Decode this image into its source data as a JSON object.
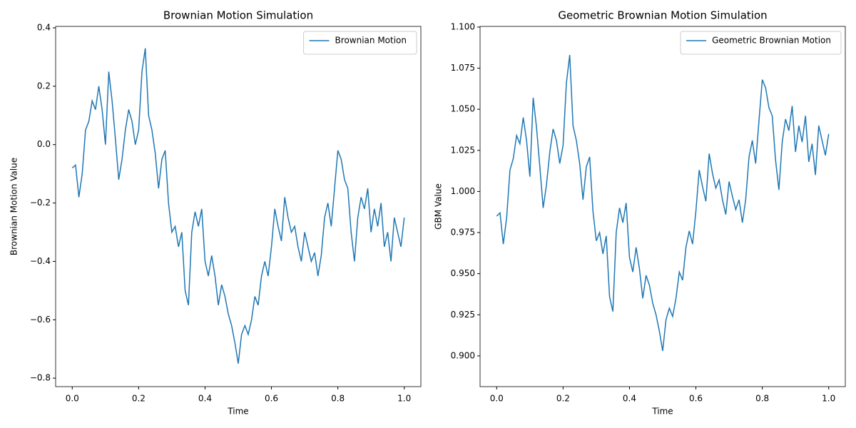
{
  "chart_data": [
    {
      "type": "line",
      "title": "Brownian Motion Simulation",
      "x_label": "Time",
      "y_label": "Brownian Motion Value",
      "x": [
        0,
        0.01,
        0.02,
        0.03,
        0.04,
        0.05,
        0.06,
        0.07,
        0.08,
        0.09,
        0.1,
        0.11,
        0.12,
        0.13,
        0.14,
        0.15,
        0.16,
        0.17,
        0.18,
        0.19,
        0.2,
        0.21,
        0.22,
        0.23,
        0.24,
        0.25,
        0.26,
        0.27,
        0.28,
        0.29,
        0.3,
        0.31,
        0.32,
        0.33,
        0.34,
        0.35,
        0.36,
        0.37,
        0.38,
        0.39,
        0.4,
        0.41,
        0.42,
        0.43,
        0.44,
        0.45,
        0.46,
        0.47,
        0.48,
        0.49,
        0.5,
        0.51,
        0.52,
        0.53,
        0.54,
        0.55,
        0.56,
        0.57,
        0.58,
        0.59,
        0.6,
        0.61,
        0.62,
        0.63,
        0.64,
        0.65,
        0.66,
        0.67,
        0.68,
        0.69,
        0.7,
        0.71,
        0.72,
        0.73,
        0.74,
        0.75,
        0.76,
        0.77,
        0.78,
        0.79,
        0.8,
        0.81,
        0.82,
        0.83,
        0.84,
        0.85,
        0.86,
        0.87,
        0.88,
        0.89,
        0.9,
        0.91,
        0.92,
        0.93,
        0.94,
        0.95,
        0.96,
        0.97,
        0.98,
        0.99,
        1
      ],
      "series": [
        {
          "name": "Brownian Motion",
          "color": "#1f77b4",
          "values": [
            -0.08,
            -0.07,
            -0.18,
            -0.1,
            0.05,
            0.08,
            0.15,
            0.12,
            0.2,
            0.12,
            0.0,
            0.25,
            0.15,
            0.02,
            -0.12,
            -0.05,
            0.05,
            0.12,
            0.08,
            0.0,
            0.05,
            0.25,
            0.33,
            0.1,
            0.05,
            -0.03,
            -0.15,
            -0.05,
            -0.02,
            -0.2,
            -0.3,
            -0.28,
            -0.35,
            -0.3,
            -0.5,
            -0.55,
            -0.3,
            -0.23,
            -0.28,
            -0.22,
            -0.4,
            -0.45,
            -0.38,
            -0.45,
            -0.55,
            -0.48,
            -0.52,
            -0.58,
            -0.62,
            -0.68,
            -0.75,
            -0.65,
            -0.62,
            -0.65,
            -0.6,
            -0.52,
            -0.55,
            -0.45,
            -0.4,
            -0.45,
            -0.35,
            -0.22,
            -0.28,
            -0.33,
            -0.18,
            -0.25,
            -0.3,
            -0.28,
            -0.35,
            -0.4,
            -0.3,
            -0.35,
            -0.4,
            -0.37,
            -0.45,
            -0.38,
            -0.25,
            -0.2,
            -0.28,
            -0.15,
            -0.02,
            -0.05,
            -0.12,
            -0.15,
            -0.3,
            -0.4,
            -0.25,
            -0.18,
            -0.22,
            -0.15,
            -0.3,
            -0.22,
            -0.28,
            -0.2,
            -0.35,
            -0.3,
            -0.4,
            -0.25,
            -0.3,
            -0.35,
            -0.25
          ]
        }
      ],
      "xlim": [
        -0.05,
        1.05
      ],
      "ylim": [
        -0.829,
        0.405
      ],
      "xticks": [
        {
          "value": 0,
          "label": "0.0"
        },
        0.2,
        0.4,
        0.6,
        0.8,
        {
          "value": 1,
          "label": "1.0"
        }
      ],
      "yticks": [
        {
          "value": -0.8,
          "label": "−0.8"
        },
        {
          "value": -0.6,
          "label": "−0.6"
        },
        {
          "value": -0.4,
          "label": "−0.4"
        },
        {
          "value": -0.2,
          "label": "−0.2"
        },
        {
          "value": 0,
          "label": "0.0"
        },
        0.2,
        0.4
      ],
      "legend": "upper right"
    },
    {
      "type": "line",
      "title": "Geometric Brownian Motion Simulation",
      "x_label": "Time",
      "y_label": "GBM Value",
      "x": [
        0,
        0.01,
        0.02,
        0.03,
        0.04,
        0.05,
        0.06,
        0.07,
        0.08,
        0.09,
        0.1,
        0.11,
        0.12,
        0.13,
        0.14,
        0.15,
        0.16,
        0.17,
        0.18,
        0.19,
        0.2,
        0.21,
        0.22,
        0.23,
        0.24,
        0.25,
        0.26,
        0.27,
        0.28,
        0.29,
        0.3,
        0.31,
        0.32,
        0.33,
        0.34,
        0.35,
        0.36,
        0.37,
        0.38,
        0.39,
        0.4,
        0.41,
        0.42,
        0.43,
        0.44,
        0.45,
        0.46,
        0.47,
        0.48,
        0.49,
        0.5,
        0.51,
        0.52,
        0.53,
        0.54,
        0.55,
        0.56,
        0.57,
        0.58,
        0.59,
        0.6,
        0.61,
        0.62,
        0.63,
        0.64,
        0.65,
        0.66,
        0.67,
        0.68,
        0.69,
        0.7,
        0.71,
        0.72,
        0.73,
        0.74,
        0.75,
        0.76,
        0.77,
        0.78,
        0.79,
        0.8,
        0.81,
        0.82,
        0.83,
        0.84,
        0.85,
        0.86,
        0.87,
        0.88,
        0.89,
        0.9,
        0.91,
        0.92,
        0.93,
        0.94,
        0.95,
        0.96,
        0.97,
        0.98,
        0.99,
        1
      ],
      "series": [
        {
          "name": "Geometric Brownian Motion",
          "color": "#1f77b4",
          "values": [
            0.985,
            0.987,
            0.968,
            0.984,
            1.013,
            1.02,
            1.034,
            1.029,
            1.045,
            1.031,
            1.009,
            1.057,
            1.039,
            1.015,
            0.99,
            1.004,
            1.024,
            1.038,
            1.031,
            1.017,
            1.028,
            1.066,
            1.083,
            1.04,
            1.031,
            1.017,
            0.995,
            1.015,
            1.021,
            0.988,
            0.97,
            0.975,
            0.962,
            0.973,
            0.936,
            0.927,
            0.975,
            0.99,
            0.981,
            0.993,
            0.96,
            0.951,
            0.966,
            0.953,
            0.935,
            0.949,
            0.943,
            0.932,
            0.925,
            0.915,
            0.903,
            0.922,
            0.929,
            0.924,
            0.935,
            0.951,
            0.946,
            0.966,
            0.976,
            0.968,
            0.988,
            1.013,
            1.003,
            0.994,
            1.023,
            1.011,
            1.002,
            1.007,
            0.995,
            0.986,
            1.006,
            0.997,
            0.989,
            0.995,
            0.981,
            0.995,
            1.021,
            1.031,
            1.017,
            1.043,
            1.068,
            1.063,
            1.051,
            1.046,
            1.019,
            1.001,
            1.03,
            1.044,
            1.037,
            1.052,
            1.024,
            1.04,
            1.03,
            1.046,
            1.018,
            1.029,
            1.01,
            1.04,
            1.031,
            1.022,
            1.035
          ]
        }
      ],
      "xlim": [
        -0.05,
        1.05
      ],
      "ylim": [
        0.8813,
        1.1004
      ],
      "xticks": [
        {
          "value": 0,
          "label": "0.0"
        },
        0.2,
        0.4,
        0.6,
        0.8,
        {
          "value": 1,
          "label": "1.0"
        }
      ],
      "yticks": [
        {
          "value": 0.9,
          "label": "0.900"
        },
        {
          "value": 0.925,
          "label": "0.925"
        },
        {
          "value": 0.95,
          "label": "0.950"
        },
        {
          "value": 0.975,
          "label": "0.975"
        },
        {
          "value": 1,
          "label": "1.000"
        },
        {
          "value": 1.025,
          "label": "1.025"
        },
        {
          "value": 1.05,
          "label": "1.050"
        },
        {
          "value": 1.075,
          "label": "1.075"
        },
        {
          "value": 1.1,
          "label": "1.100"
        }
      ],
      "legend": "upper right"
    }
  ]
}
